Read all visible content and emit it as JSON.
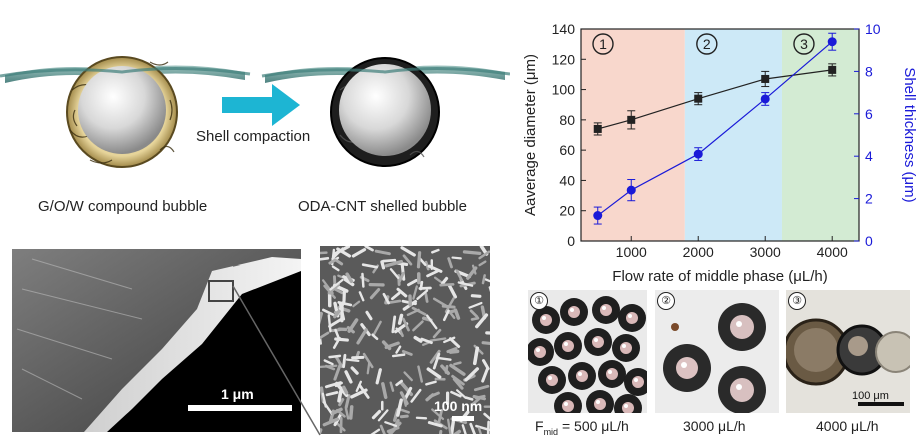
{
  "schematic": {
    "arrow_label": "Shell compaction",
    "left_caption": "G/O/W compound bubble",
    "right_caption": "ODA-CNT shelled bubble"
  },
  "sem": {
    "scale_left": "1 μm",
    "scale_right": "100 nm"
  },
  "micrographs": [
    {
      "marker": "①",
      "caption_prefix": "F",
      "caption_sub": "mid",
      "caption_rest": " = 500 μL/h"
    },
    {
      "marker": "②",
      "caption": "3000 μL/h"
    },
    {
      "marker": "③",
      "caption": "4000 μL/h",
      "scale": "100 μm"
    }
  ],
  "colors": {
    "axis_left": "#222222",
    "axis_right": "#1a1ad8",
    "region1": "#f8d7cc",
    "region2": "#cde9f7",
    "region3": "#d3ebd3"
  },
  "chart_data": {
    "type": "line",
    "xlabel": "Flow rate of middle phase (μL/h)",
    "ylabel": "Aaverage diameter (μm)",
    "y2label": "Shell thickness (μm)",
    "xlim": [
      250,
      4400
    ],
    "ylim": [
      0,
      140
    ],
    "y2lim": [
      0,
      10
    ],
    "x_ticks": [
      1000,
      2000,
      3000,
      4000
    ],
    "y_ticks": [
      0,
      20,
      40,
      60,
      80,
      100,
      120,
      140
    ],
    "y2_ticks": [
      0,
      2,
      4,
      6,
      8,
      10
    ],
    "regions": [
      {
        "label": "①",
        "x0": 250,
        "x1": 1800
      },
      {
        "label": "②",
        "x0": 1800,
        "x1": 3250
      },
      {
        "label": "③",
        "x0": 3250,
        "x1": 4400
      }
    ],
    "series": [
      {
        "axis": "left",
        "color": "#222222",
        "marker": "square",
        "x": [
          500,
          1000,
          2000,
          3000,
          4000
        ],
        "values": [
          74,
          80,
          94,
          107,
          113
        ],
        "errors": [
          4,
          6,
          4,
          5,
          4
        ]
      },
      {
        "axis": "right",
        "color": "#1a1ad8",
        "marker": "circle",
        "x": [
          500,
          1000,
          2000,
          3000,
          4000
        ],
        "values": [
          1.2,
          2.4,
          4.1,
          6.7,
          9.4
        ],
        "errors": [
          0.4,
          0.5,
          0.3,
          0.3,
          0.4
        ]
      }
    ]
  }
}
